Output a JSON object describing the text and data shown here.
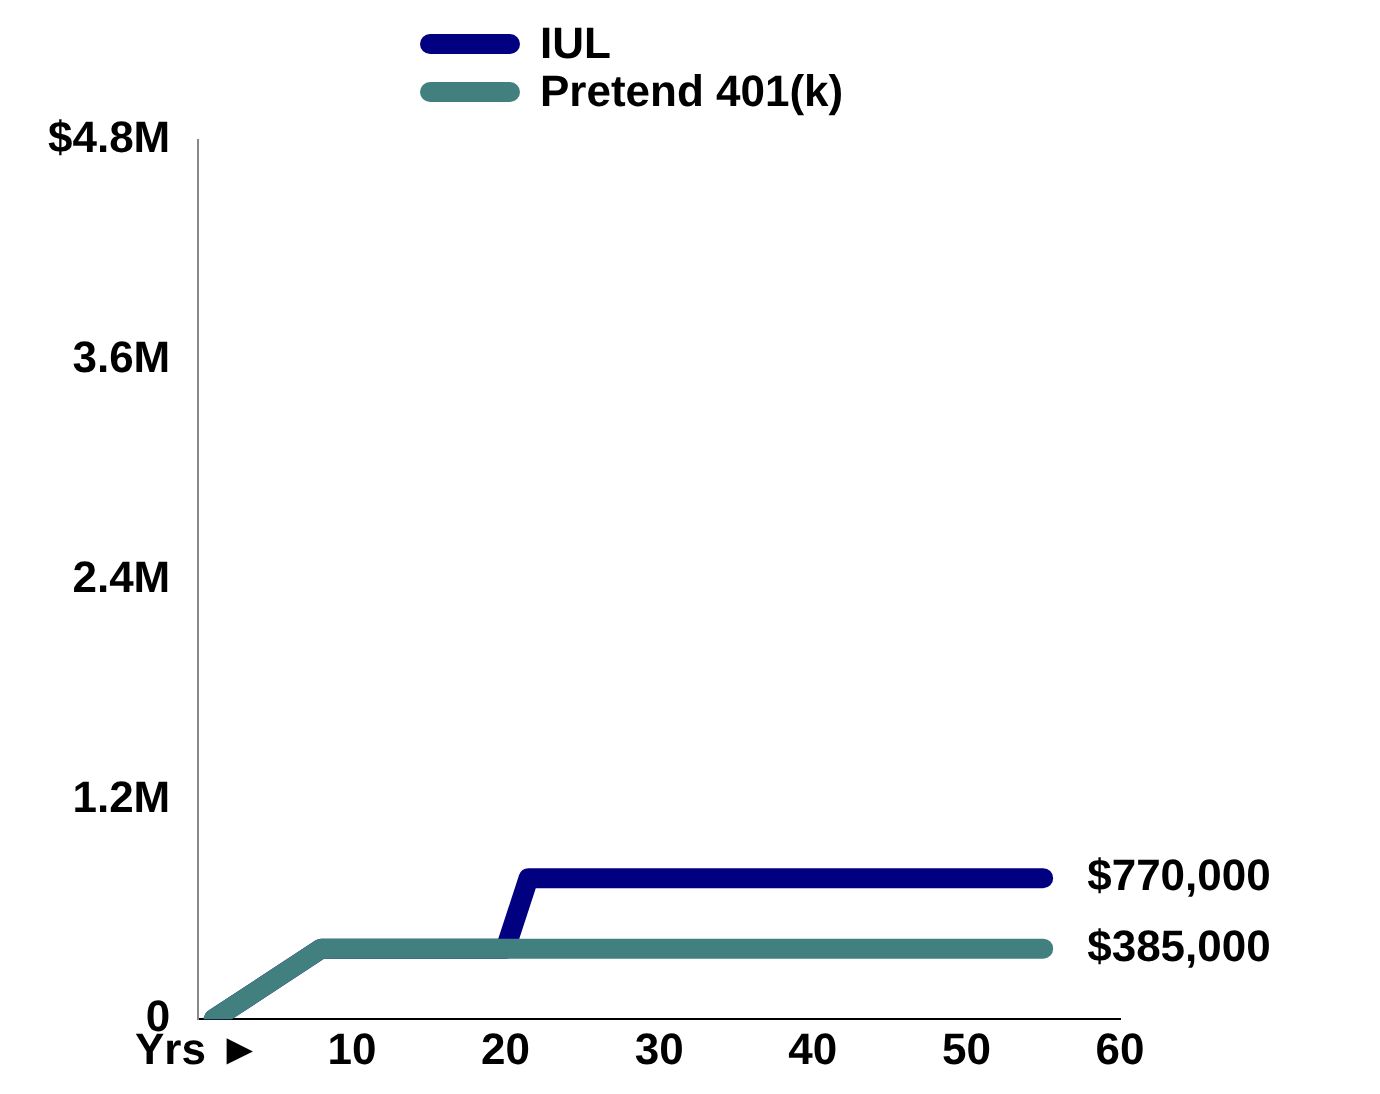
{
  "chart_data": {
    "type": "line",
    "series": [
      {
        "name": "IUL",
        "color": "#000080",
        "x": [
          1,
          8,
          20,
          21.5,
          55
        ],
        "values": [
          0,
          385000,
          385000,
          770000,
          770000
        ],
        "value_labels": [
          null,
          null,
          null,
          null,
          "$770,000"
        ]
      },
      {
        "name": "Pretend 401(k)",
        "color": "#428080",
        "x": [
          1,
          8,
          55
        ],
        "values": [
          0,
          385000,
          385000
        ],
        "value_labels": [
          null,
          null,
          "$385,000"
        ]
      }
    ],
    "xlim": [
      0,
      60
    ],
    "xticks": [
      {
        "value": 0,
        "label": "Yrs ►"
      },
      10,
      20,
      30,
      40,
      50,
      60
    ],
    "ylim": [
      0,
      4800000
    ],
    "yticks": [
      0,
      {
        "value": 1200000,
        "label": "1.2M"
      },
      {
        "value": 2400000,
        "label": "2.4M"
      },
      {
        "value": 3600000,
        "label": "3.6M"
      },
      {
        "value": 4800000,
        "label": "$4.8M"
      }
    ],
    "grid": false,
    "legend": "top",
    "marker": "none",
    "line_style": "solid"
  }
}
